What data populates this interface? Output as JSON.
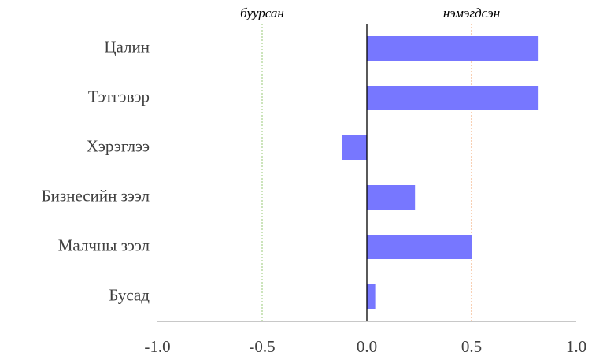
{
  "chart_data": {
    "type": "bar",
    "orientation": "horizontal",
    "categories": [
      "Цалин",
      "Тэтгэвэр",
      "Хэрэглээ",
      "Бизнесийн зээл",
      "Малчны зээл",
      "Бусад"
    ],
    "values": [
      0.82,
      0.82,
      -0.12,
      0.23,
      0.5,
      0.04
    ],
    "xlim": [
      -1.0,
      1.0
    ],
    "xticks": [
      "-1.0",
      "-0.5",
      "0.0",
      "0.5",
      "1.0"
    ],
    "xtick_values": [
      -1.0,
      -0.5,
      0.0,
      0.5,
      1.0
    ],
    "annotations": [
      {
        "text": "буурсан",
        "x": -0.5,
        "color": "#a9d18e"
      },
      {
        "text": "нэмэгдсэн",
        "x": 0.5,
        "color": "#f4b183"
      }
    ],
    "bar_color": "#7777ff",
    "grid": false
  }
}
